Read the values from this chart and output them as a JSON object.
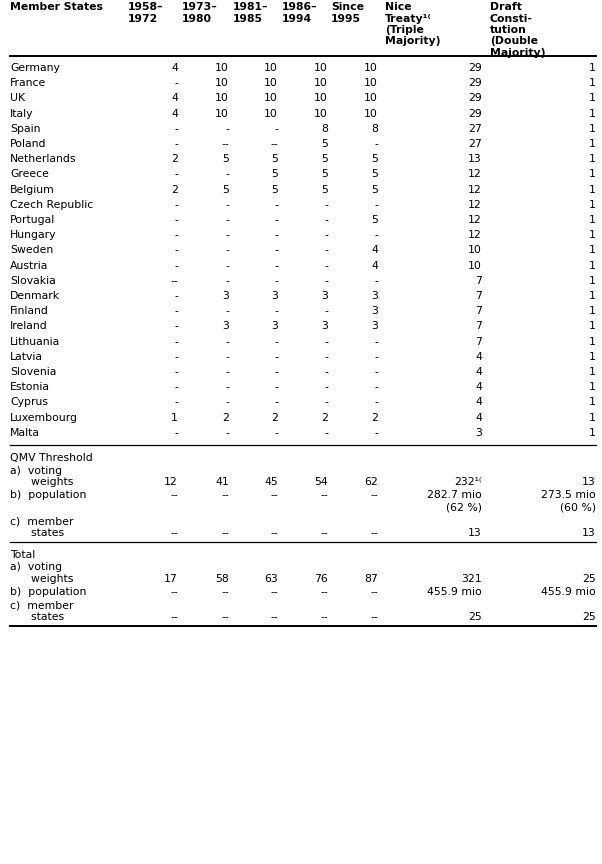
{
  "member_rows": [
    [
      "Germany",
      "4",
      "10",
      "10",
      "10",
      "10",
      "29",
      "1"
    ],
    [
      "France",
      "-",
      "10",
      "10",
      "10",
      "10",
      "29",
      "1"
    ],
    [
      "UK",
      "4",
      "10",
      "10",
      "10",
      "10",
      "29",
      "1"
    ],
    [
      "Italy",
      "4",
      "10",
      "10",
      "10",
      "10",
      "29",
      "1"
    ],
    [
      "Spain",
      "-",
      "-",
      "-",
      "8",
      "8",
      "27",
      "1"
    ],
    [
      "Poland",
      "-",
      "--",
      "--",
      "5",
      "-",
      "27",
      "1"
    ],
    [
      "Netherlands",
      "2",
      "5",
      "5",
      "5",
      "5",
      "13",
      "1"
    ],
    [
      "Greece",
      "-",
      "-",
      "5",
      "5",
      "5",
      "12",
      "1"
    ],
    [
      "Belgium",
      "2",
      "5",
      "5",
      "5",
      "5",
      "12",
      "1"
    ],
    [
      "Czech Republic",
      "-",
      "-",
      "-",
      "-",
      "-",
      "12",
      "1"
    ],
    [
      "Portugal",
      "-",
      "-",
      "-",
      "-",
      "5",
      "12",
      "1"
    ],
    [
      "Hungary",
      "-",
      "-",
      "-",
      "-",
      "-",
      "12",
      "1"
    ],
    [
      "Sweden",
      "-",
      "-",
      "-",
      "-",
      "4",
      "10",
      "1"
    ],
    [
      "Austria",
      "-",
      "-",
      "-",
      "-",
      "4",
      "10",
      "1"
    ],
    [
      "Slovakia",
      "--",
      "-",
      "-",
      "-",
      "-",
      "7",
      "1"
    ],
    [
      "Denmark",
      "-",
      "3",
      "3",
      "3",
      "3",
      "7",
      "1"
    ],
    [
      "Finland",
      "-",
      "-",
      "-",
      "-",
      "3",
      "7",
      "1"
    ],
    [
      "Ireland",
      "-",
      "3",
      "3",
      "3",
      "3",
      "7",
      "1"
    ],
    [
      "Lithuania",
      "-",
      "-",
      "-",
      "-",
      "-",
      "7",
      "1"
    ],
    [
      "Latvia",
      "-",
      "-",
      "-",
      "-",
      "-",
      "4",
      "1"
    ],
    [
      "Slovenia",
      "-",
      "-",
      "-",
      "-",
      "-",
      "4",
      "1"
    ],
    [
      "Estonia",
      "-",
      "-",
      "-",
      "-",
      "-",
      "4",
      "1"
    ],
    [
      "Cyprus",
      "-",
      "-",
      "-",
      "-",
      "-",
      "4",
      "1"
    ],
    [
      "Luxembourg",
      "1",
      "2",
      "2",
      "2",
      "2",
      "4",
      "1"
    ],
    [
      "Malta",
      "-",
      "-",
      "-",
      "-",
      "-",
      "3",
      "1"
    ]
  ],
  "qmv_rows_a_vals": [
    "12",
    "41",
    "45",
    "54",
    "62",
    "232¹⁽",
    "13"
  ],
  "qmv_rows_b_vals": [
    "--",
    "--",
    "--",
    "--",
    "--",
    "282.7 mio",
    "273.5 mio"
  ],
  "qmv_rows_b_vals2": [
    "",
    "",
    "",
    "",
    "",
    "(62 %)",
    "(60 %)"
  ],
  "qmv_rows_c_vals": [
    "--",
    "--",
    "--",
    "--",
    "--",
    "13",
    "13"
  ],
  "total_rows_a_vals": [
    "17",
    "58",
    "63",
    "76",
    "87",
    "321",
    "25"
  ],
  "total_rows_b_vals": [
    "--",
    "--",
    "--",
    "--",
    "--",
    "455.9 mio",
    "455.9 mio"
  ],
  "total_rows_c_vals": [
    "--",
    "--",
    "--",
    "--",
    "--",
    "25",
    "25"
  ],
  "bg_color": "#ffffff",
  "text_color": "#000000",
  "fs": 7.8,
  "fs_header": 7.8
}
